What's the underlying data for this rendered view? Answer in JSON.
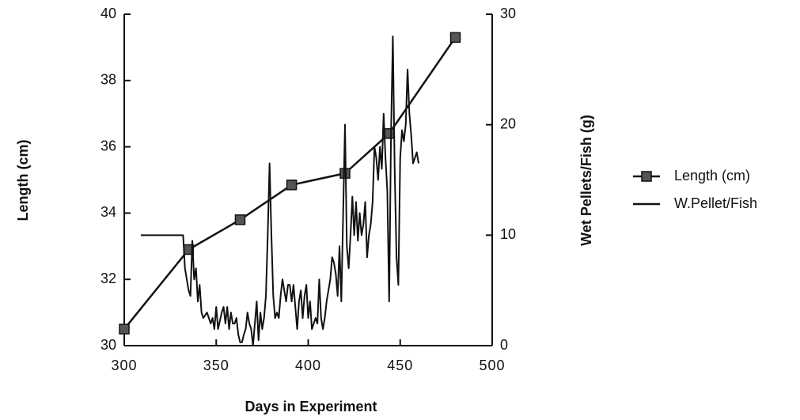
{
  "chart_data": {
    "type": "line",
    "xlabel": "Days in Experiment",
    "ylabel": "Length (cm)",
    "y2label": "Wet Pellets/Fish (g)",
    "xlim": [
      300,
      500
    ],
    "xticks": [
      300,
      350,
      400,
      450,
      500
    ],
    "ylim": [
      30,
      40
    ],
    "yticks": [
      30,
      32,
      34,
      36,
      38,
      40
    ],
    "y2lim": [
      0,
      30
    ],
    "y2ticks": [
      0,
      10,
      20,
      30
    ],
    "legend": "right",
    "series": [
      {
        "name": "Length (cm)",
        "color": "#111111",
        "marker": "square",
        "x": [
          300,
          335,
          363,
          391,
          420,
          444,
          480
        ],
        "values": [
          30.5,
          32.9,
          33.8,
          34.85,
          35.2,
          36.4,
          39.3
        ]
      },
      {
        "name": "W.Pellet/Fish",
        "color": "#111111",
        "axis": "y2",
        "x": [
          309,
          332,
          333,
          335,
          336,
          337,
          338,
          339,
          340,
          341,
          342,
          343,
          345,
          347,
          348,
          349,
          350,
          351,
          353,
          354,
          355,
          356,
          357,
          358,
          359,
          360,
          361,
          362,
          363,
          364,
          365,
          366,
          367,
          368,
          369,
          370,
          371,
          372,
          373,
          374,
          375,
          376,
          377,
          378,
          379,
          380,
          381,
          382,
          383,
          384,
          385,
          386,
          387,
          388,
          389,
          390,
          391,
          392,
          393,
          394,
          395,
          396,
          397,
          398,
          399,
          400,
          401,
          402,
          403,
          404,
          405,
          406,
          407,
          408,
          409,
          410,
          411,
          412,
          413,
          414,
          415,
          416,
          417,
          418,
          419,
          420,
          421,
          422,
          423,
          424,
          425,
          426,
          427,
          428,
          429,
          430,
          431,
          432,
          433,
          434,
          435,
          436,
          437,
          438,
          439,
          440,
          441,
          442,
          443,
          444,
          445,
          446,
          447,
          448,
          449,
          450,
          451,
          452,
          453,
          454,
          455,
          456,
          457,
          458,
          459,
          460
        ],
        "values": [
          10,
          10,
          7,
          5,
          4.5,
          9.5,
          6,
          7,
          4,
          5.5,
          3,
          2.5,
          3,
          2,
          2.5,
          1.5,
          3.5,
          1.5,
          3,
          3.5,
          2,
          3.5,
          1.5,
          3,
          2,
          2,
          2.5,
          1,
          0.3,
          0.3,
          1,
          1.5,
          3,
          2,
          1.5,
          0,
          2,
          4,
          0.5,
          3,
          1.5,
          2.5,
          4.5,
          10,
          16.5,
          10,
          4.5,
          2.5,
          3,
          2.5,
          4.5,
          6,
          5,
          4,
          5.5,
          5.5,
          4,
          5.5,
          3.5,
          1.5,
          4,
          5,
          2.5,
          4.5,
          5.5,
          2.5,
          4,
          1.5,
          2,
          2.5,
          2,
          6,
          2.5,
          1.5,
          2.5,
          4,
          5,
          6,
          8,
          7.5,
          6.5,
          4.5,
          9,
          4,
          12,
          20,
          9,
          7,
          10,
          13.5,
          10,
          13,
          9.5,
          12,
          10,
          11,
          13,
          8,
          10,
          11,
          13,
          18,
          17,
          15,
          18,
          16,
          21,
          17,
          14,
          4,
          19,
          28,
          16,
          8,
          5.5,
          17,
          19.5,
          18.5,
          20,
          25,
          21,
          19,
          16.5,
          17,
          17.5,
          16.5
        ]
      }
    ]
  }
}
